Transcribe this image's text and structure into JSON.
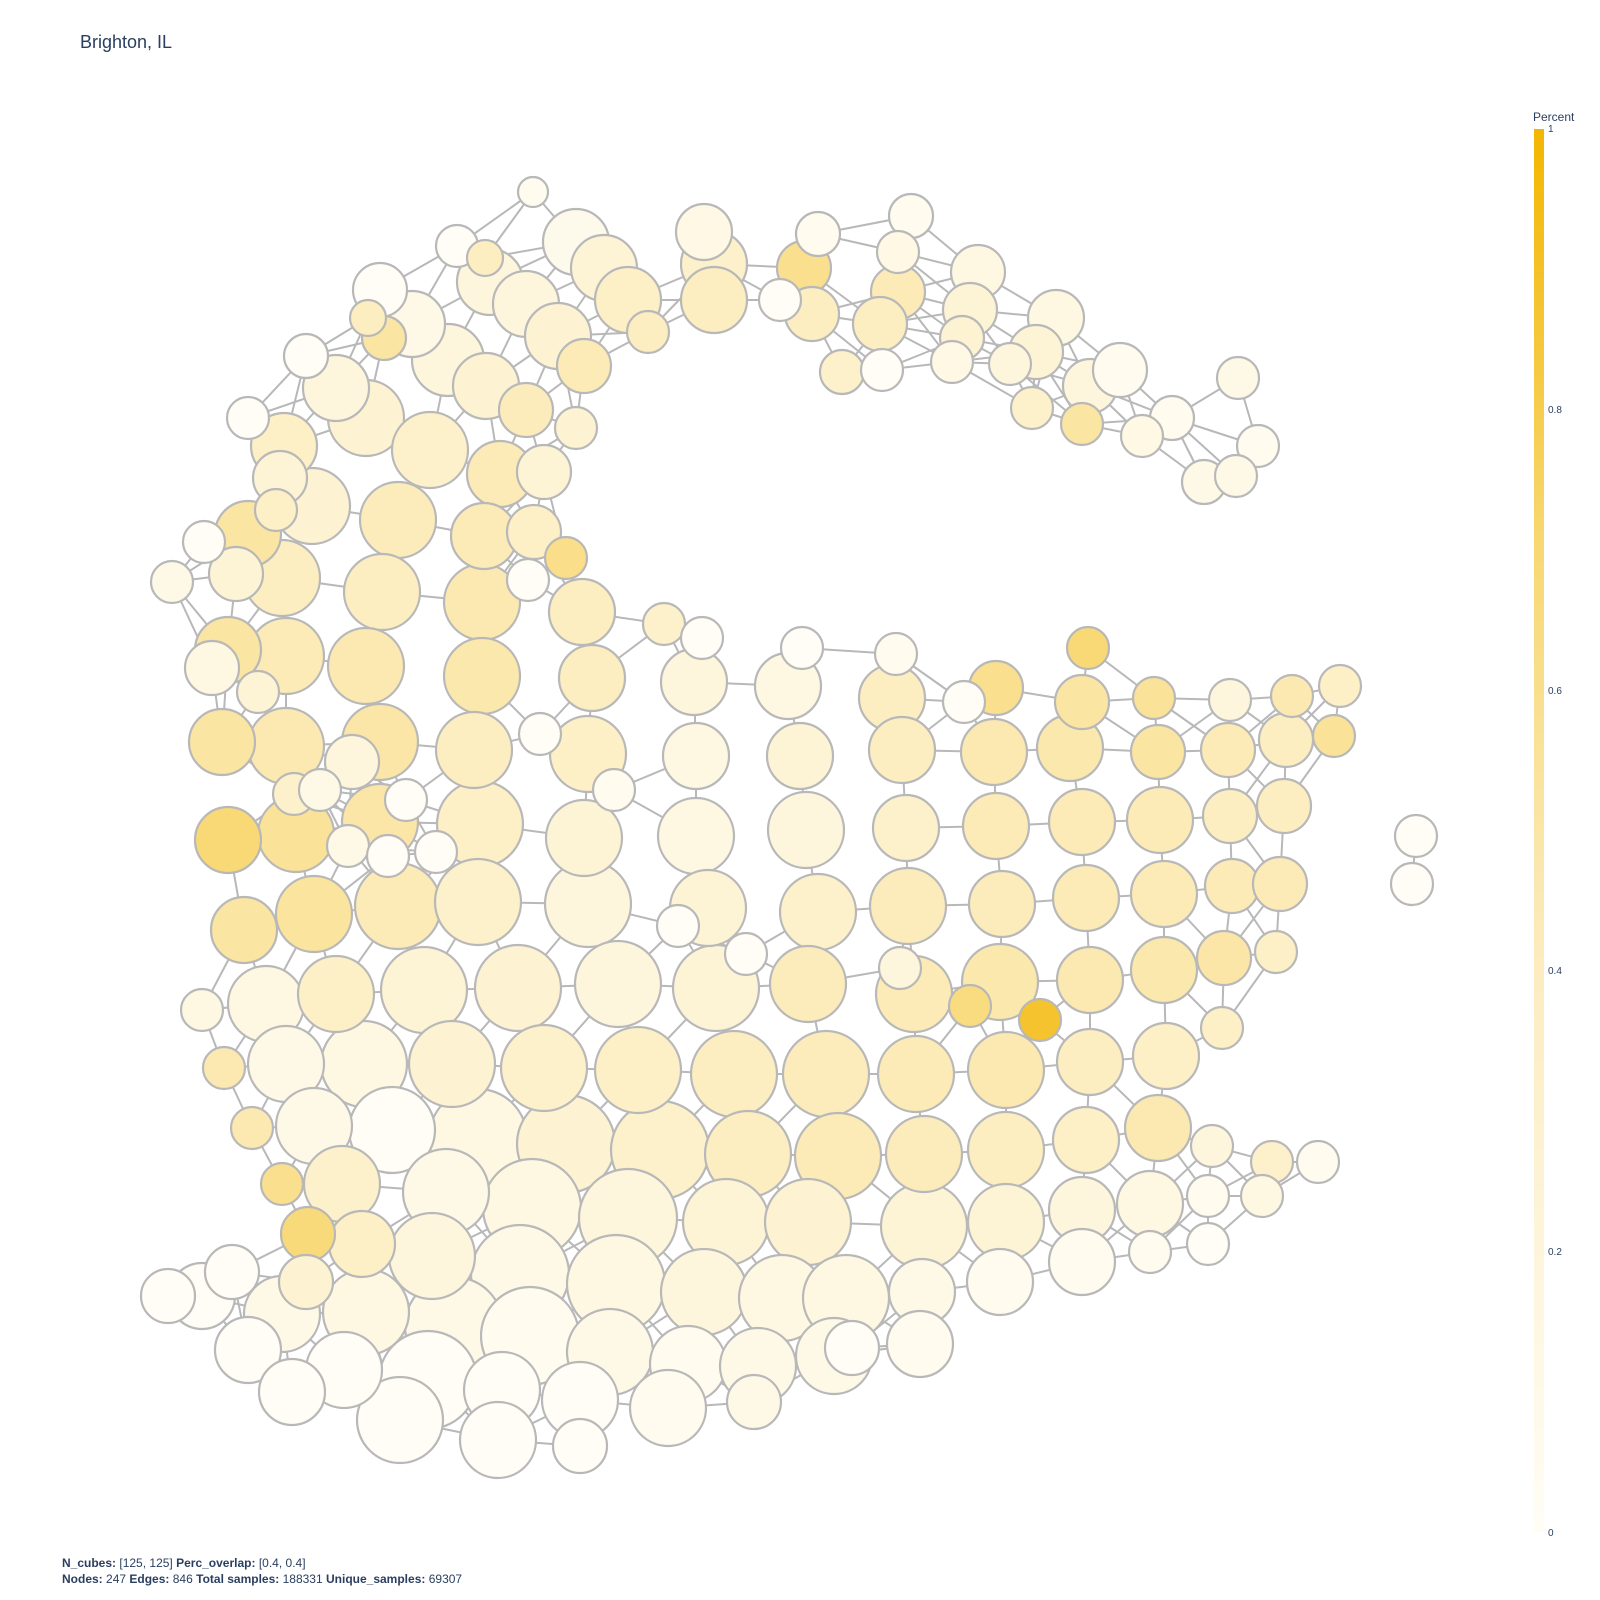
{
  "title": "Brighton, IL",
  "colorbar": {
    "title": "Percent",
    "ticks": [
      "1",
      "0.8",
      "0.6",
      "0.4",
      "0.2",
      "0"
    ],
    "tick_values": [
      1,
      0.8,
      0.6,
      0.4,
      0.2,
      0
    ],
    "color_low": "#fffdf5",
    "color_high": "#f3b600"
  },
  "footer": {
    "n_cubes_label": "N_cubes:",
    "n_cubes_value": "[125, 125]",
    "perc_overlap_label": "Perc_overlap:",
    "perc_overlap_value": "[0.4, 0.4]",
    "nodes_label": "Nodes:",
    "nodes_value": "247",
    "edges_label": "Edges:",
    "edges_value": "846",
    "total_samples_label": "Total samples:",
    "total_samples_value": "188331",
    "unique_samples_label": "Unique_samples:",
    "unique_samples_value": "69307"
  },
  "colors": {
    "edge": "#b8b8b8",
    "node_stroke": "#b8b8b8"
  }
}
